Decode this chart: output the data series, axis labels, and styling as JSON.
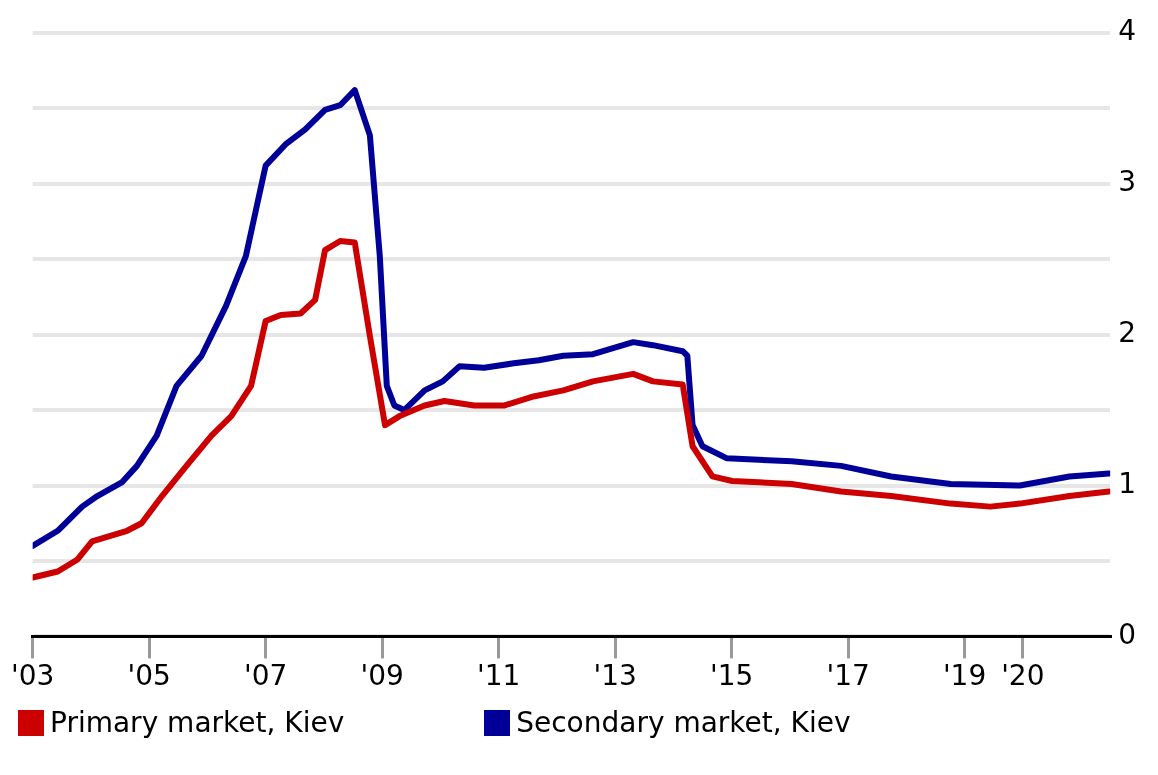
{
  "chart_data": {
    "type": "line",
    "xlim": [
      2003,
      2021.5
    ],
    "ylim": [
      0,
      4
    ],
    "xticks": [
      {
        "value": 2003,
        "label": "'03"
      },
      {
        "value": 2005,
        "label": "'05"
      },
      {
        "value": 2007,
        "label": "'07"
      },
      {
        "value": 2009,
        "label": "'09"
      },
      {
        "value": 2011,
        "label": "'11"
      },
      {
        "value": 2013,
        "label": "'13"
      },
      {
        "value": 2015,
        "label": "'15"
      },
      {
        "value": 2017,
        "label": "'17"
      },
      {
        "value": 2019,
        "label": "'19"
      },
      {
        "value": 2020,
        "label": "'20"
      }
    ],
    "yticks": [
      0,
      {
        "value": 0.5,
        "label": null
      },
      1,
      {
        "value": 1.5,
        "label": null
      },
      2,
      {
        "value": 2.5,
        "label": null
      },
      3,
      {
        "value": 3.5,
        "label": null
      },
      4
    ],
    "grid": "y",
    "legend": "bottom",
    "marker": "none",
    "line_style": "solid",
    "series": [
      {
        "name": "Primary market, Kiev",
        "color": "#cc0000",
        "x": [
          2003.0,
          2003.43,
          2003.77,
          2004.02,
          2004.62,
          2004.87,
          2005.22,
          2005.64,
          2006.07,
          2006.41,
          2006.75,
          2007.0,
          2007.26,
          2007.6,
          2007.85,
          2008.02,
          2008.28,
          2008.53,
          2008.79,
          2009.05,
          2009.3,
          2009.73,
          2010.07,
          2010.58,
          2011.09,
          2011.6,
          2012.11,
          2012.62,
          2013.31,
          2013.65,
          2014.16,
          2014.33,
          2014.67,
          2015.01,
          2016.03,
          2016.88,
          2017.74,
          2018.76,
          2019.44,
          2019.95,
          2020.8,
          2021.48
        ],
        "values": [
          0.39,
          0.43,
          0.51,
          0.63,
          0.7,
          0.75,
          0.93,
          1.13,
          1.33,
          1.46,
          1.66,
          2.09,
          2.13,
          2.14,
          2.23,
          2.56,
          2.62,
          2.61,
          1.99,
          1.4,
          1.46,
          1.53,
          1.56,
          1.53,
          1.53,
          1.59,
          1.63,
          1.69,
          1.74,
          1.69,
          1.67,
          1.26,
          1.06,
          1.03,
          1.01,
          0.96,
          0.93,
          0.88,
          0.86,
          0.88,
          0.93,
          0.96
        ]
      },
      {
        "name": "Secondary market, Kiev",
        "color": "#000099",
        "x": [
          2003.0,
          2003.43,
          2003.85,
          2004.11,
          2004.53,
          2004.79,
          2005.13,
          2005.47,
          2005.9,
          2006.32,
          2006.66,
          2007.0,
          2007.34,
          2007.68,
          2008.02,
          2008.28,
          2008.53,
          2008.79,
          2008.96,
          2009.08,
          2009.21,
          2009.38,
          2009.73,
          2010.04,
          2010.33,
          2010.75,
          2011.26,
          2011.69,
          2012.11,
          2012.62,
          2013.31,
          2013.65,
          2014.16,
          2014.24,
          2014.33,
          2014.5,
          2014.92,
          2016.03,
          2016.88,
          2017.74,
          2018.76,
          2019.95,
          2020.8,
          2021.48
        ],
        "values": [
          0.6,
          0.7,
          0.86,
          0.93,
          1.02,
          1.13,
          1.33,
          1.66,
          1.86,
          2.19,
          2.52,
          3.12,
          3.26,
          3.36,
          3.49,
          3.52,
          3.62,
          3.32,
          2.52,
          1.66,
          1.53,
          1.5,
          1.63,
          1.69,
          1.79,
          1.78,
          1.81,
          1.83,
          1.86,
          1.87,
          1.95,
          1.93,
          1.89,
          1.86,
          1.4,
          1.26,
          1.18,
          1.16,
          1.13,
          1.06,
          1.01,
          1.0,
          1.06,
          1.08
        ]
      }
    ]
  }
}
